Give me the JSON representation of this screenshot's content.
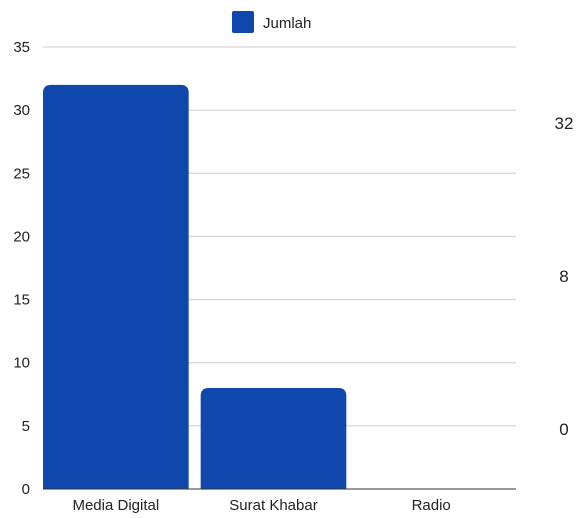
{
  "chart_data": {
    "type": "bar",
    "categories": [
      "Media Digital",
      "Surat Khabar",
      "Radio"
    ],
    "series": [
      {
        "name": "Jumlah",
        "values": [
          32,
          8,
          0
        ],
        "color": "#0f47ad"
      }
    ],
    "ylim": [
      0,
      35
    ],
    "yticks": [
      "0",
      "5",
      "10",
      "15",
      "20",
      "25",
      "30",
      "35"
    ],
    "grid": true,
    "legend_position": "top",
    "side_values": [
      "32",
      "8",
      "0"
    ],
    "title": "",
    "xlabel": "",
    "ylabel": ""
  }
}
